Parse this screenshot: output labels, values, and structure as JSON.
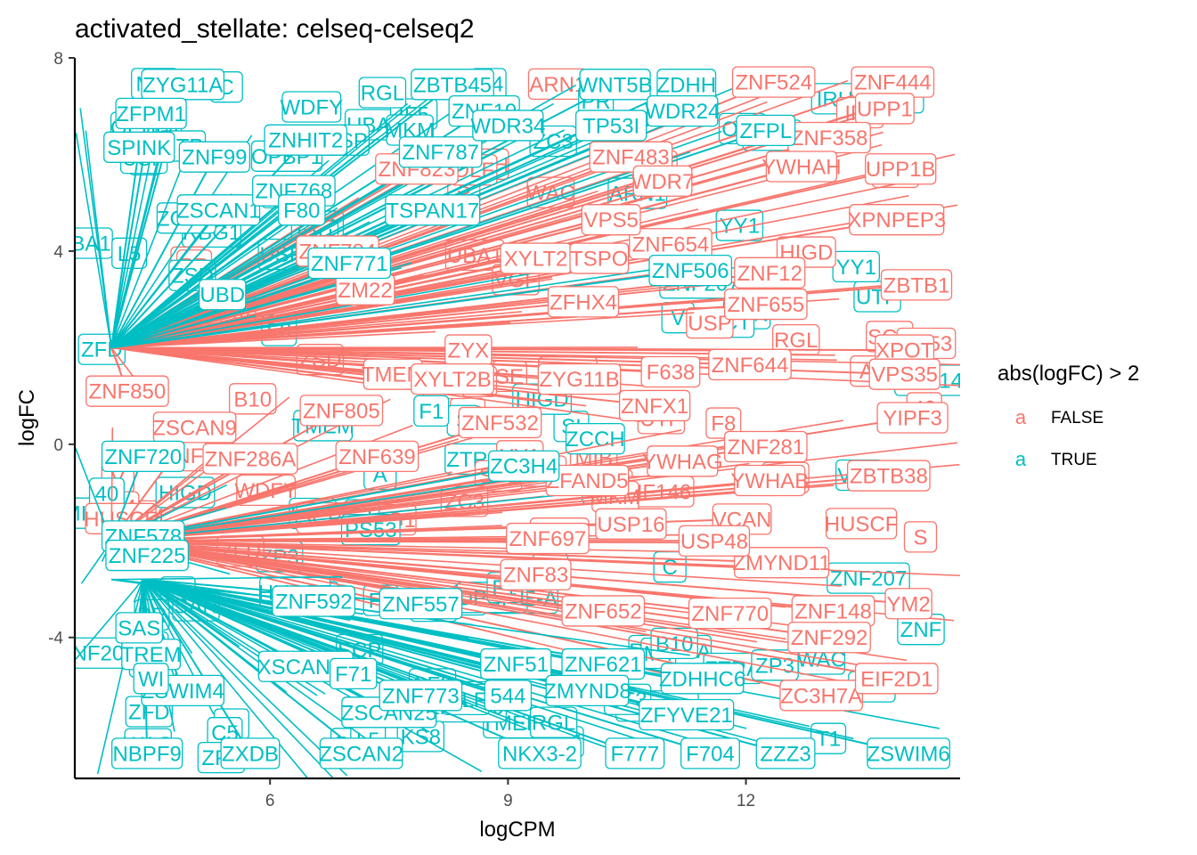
{
  "chart_data": {
    "type": "scatter",
    "title": "activated_stellate: celseq-celseq2",
    "xlabel": "logCPM",
    "ylabel": "logFC",
    "xlim": [
      3.55,
      14.7
    ],
    "ylim": [
      -6.9,
      8
    ],
    "x_ticks": [
      6,
      9,
      12
    ],
    "y_ticks": [
      8,
      4,
      0,
      -4
    ],
    "grid": false,
    "legend": {
      "title": "abs(logFC) > 2",
      "placement": "right",
      "key_glyph": "a",
      "entries": [
        {
          "label": "FALSE",
          "color": "#F8766D"
        },
        {
          "label": "TRUE",
          "color": "#00BFC4"
        }
      ]
    },
    "series": [
      {
        "name": "FALSE",
        "color": "#F8766D",
        "points": [
          {
            "label": "ZNF524",
            "x": 12.35,
            "y": 7.5,
            "px": 4.0,
            "py": 2.0
          },
          {
            "label": "ZNF444",
            "x": 13.85,
            "y": 7.5,
            "px": 4.0,
            "py": 2.0
          },
          {
            "label": "UPP1",
            "x": 13.75,
            "y": 6.95,
            "px": 4.0,
            "py": 2.0
          },
          {
            "label": "ZNF358",
            "x": 13.05,
            "y": 6.35,
            "px": 4.0,
            "py": 2.0
          },
          {
            "label": "ZNF483",
            "x": 10.55,
            "y": 5.95,
            "px": 4.0,
            "py": 2.0
          },
          {
            "label": "YWHAH",
            "x": 12.7,
            "y": 5.75,
            "px": 4.0,
            "py": 2.0
          },
          {
            "label": "ZNF823",
            "x": 7.85,
            "y": 5.7,
            "px": 4.0,
            "py": 2.0
          },
          {
            "label": "XPNPEP3",
            "x": 13.9,
            "y": 4.65,
            "px": 4.0,
            "py": 2.0
          },
          {
            "label": "ZNF654",
            "x": 11.05,
            "y": 4.15,
            "px": 4.0,
            "py": 2.0
          },
          {
            "label": "ZNF784",
            "x": 6.85,
            "y": 4.0,
            "px": 4.0,
            "py": 2.0
          },
          {
            "label": "XYLT2",
            "x": 9.35,
            "y": 3.85,
            "px": 4.0,
            "py": 2.0
          },
          {
            "label": "ZNF12",
            "x": 12.3,
            "y": 3.55,
            "px": 4.0,
            "py": 2.0
          },
          {
            "label": "ZBTB1",
            "x": 14.15,
            "y": 3.3,
            "px": 4.0,
            "py": 2.0
          },
          {
            "label": "ZNF655",
            "x": 12.25,
            "y": 2.9,
            "px": 4.0,
            "py": 2.0
          },
          {
            "label": "ZFHX4",
            "x": 9.95,
            "y": 2.95,
            "px": 4.0,
            "py": 2.0
          },
          {
            "label": "XPOT",
            "x": 14.0,
            "y": 1.95,
            "px": 4.0,
            "py": 2.0
          },
          {
            "label": "ZYX",
            "x": 8.5,
            "y": 1.95,
            "px": 4.0,
            "py": 2.0
          },
          {
            "label": "ZNF644",
            "x": 12.05,
            "y": 1.65,
            "px": 4.0,
            "py": 2.0
          },
          {
            "label": "ZYG11B",
            "x": 9.9,
            "y": 1.35,
            "px": 4.0,
            "py": 2.0
          },
          {
            "label": "ZNF850",
            "x": 4.2,
            "y": 1.1,
            "px": 4.0,
            "py": 2.0
          },
          {
            "label": "ZNFX1",
            "x": 10.85,
            "y": 0.8,
            "px": 4.0,
            "py": 2.0
          },
          {
            "label": "ZNF805",
            "x": 6.9,
            "y": 0.7,
            "px": 4.0,
            "py": -2.0
          },
          {
            "label": "YIPF3",
            "x": 14.1,
            "y": 0.55,
            "px": 4.0,
            "py": -2.0
          },
          {
            "label": "ZNF532",
            "x": 8.9,
            "y": 0.45,
            "px": 4.0,
            "py": -2.0
          },
          {
            "label": "ZSCAN9",
            "x": 5.05,
            "y": 0.35,
            "px": 4.0,
            "py": -2.0
          },
          {
            "label": "ZNF281",
            "x": 12.25,
            "y": -0.05,
            "px": 4.0,
            "py": -2.0
          },
          {
            "label": "ZNF286A",
            "x": 5.75,
            "y": -0.3,
            "px": 4.0,
            "py": -2.0
          },
          {
            "label": "ZNF639",
            "x": 7.35,
            "y": -0.25,
            "px": 4.0,
            "py": -2.0
          },
          {
            "label": "ZBTB38",
            "x": 13.8,
            "y": -0.65,
            "px": 4.0,
            "py": -2.0
          },
          {
            "label": "YWHAB",
            "x": 12.3,
            "y": -0.75,
            "px": 4.0,
            "py": -2.0
          },
          {
            "label": "ZFAND5",
            "x": 10.0,
            "y": -0.75,
            "px": 4.0,
            "py": -2.0
          },
          {
            "label": "YWHAG",
            "x": 11.2,
            "y": -0.35,
            "px": 4.0,
            "py": -2.0
          },
          {
            "label": "VCAN",
            "x": 11.95,
            "y": -1.55,
            "px": 4.0,
            "py": -2.0
          },
          {
            "label": "USP16",
            "x": 10.55,
            "y": -1.65,
            "px": 4.0,
            "py": -2.0
          },
          {
            "label": "ZNF697",
            "x": 9.5,
            "y": -1.95,
            "px": 4.0,
            "py": -2.0
          },
          {
            "label": "ZMYND11",
            "x": 12.45,
            "y": -2.45,
            "px": 4.0,
            "py": -2.0
          },
          {
            "label": "ZNF83",
            "x": 9.35,
            "y": -2.7,
            "px": 4.0,
            "py": -2.0
          },
          {
            "label": "ZNF770",
            "x": 11.8,
            "y": -3.5,
            "px": 4.0,
            "py": -2.0
          },
          {
            "label": "ZNF652",
            "x": 10.2,
            "y": -3.45,
            "px": 4.0,
            "py": -2.0
          },
          {
            "label": "ZNF148",
            "x": 13.1,
            "y": -3.45,
            "px": 4.0,
            "py": -2.0
          },
          {
            "label": "ZNF292",
            "x": 13.05,
            "y": -4.0,
            "px": 4.0,
            "py": -2.0
          },
          {
            "label": "ZC3H7A",
            "x": 12.95,
            "y": -5.2,
            "px": 4.0,
            "py": -2.0
          },
          {
            "label": "VPS35",
            "x": 14.0,
            "y": 1.45,
            "px": 4.0,
            "py": 2.0
          },
          {
            "label": "WDR7",
            "x": 10.95,
            "y": 5.45,
            "px": 4.0,
            "py": 2.0
          },
          {
            "label": "VPS5",
            "x": 10.3,
            "y": 4.65,
            "px": 4.0,
            "py": 2.0
          },
          {
            "label": "TSPO",
            "x": 10.15,
            "y": 3.85,
            "px": 4.0,
            "py": 2.0
          },
          {
            "label": "TMEM",
            "x": 7.55,
            "y": 1.45,
            "px": 4.0,
            "py": 2.0
          },
          {
            "label": "F638",
            "x": 11.05,
            "y": 1.5,
            "px": 4.0,
            "py": 2.0
          },
          {
            "label": "USP48",
            "x": 11.6,
            "y": -2.0,
            "px": 4.0,
            "py": -2.0
          },
          {
            "label": "YM2",
            "x": 14.05,
            "y": -3.3,
            "px": 4.0,
            "py": -2.0
          },
          {
            "label": "EIF2D1",
            "x": 13.9,
            "y": -4.85,
            "px": 4.0,
            "py": -2.0
          },
          {
            "label": "UPP1B",
            "x": 13.95,
            "y": 5.7,
            "px": 4.0,
            "py": 2.0
          },
          {
            "label": "ZM22",
            "x": 7.2,
            "y": 3.2,
            "px": 4.0,
            "py": 2.0
          },
          {
            "label": "XYLT2B",
            "x": 8.3,
            "y": 1.35,
            "px": 4.0,
            "py": 2.0
          }
        ]
      },
      {
        "name": "TRUE",
        "color": "#00BFC4",
        "points": [
          {
            "label": "ZYG11A",
            "x": 4.9,
            "y": 7.45,
            "px": 4.0,
            "py": 2.0
          },
          {
            "label": "ZBTB45",
            "x": 8.3,
            "y": 7.45,
            "px": 4.0,
            "py": 2.0
          },
          {
            "label": "WNT5B",
            "x": 10.35,
            "y": 7.45,
            "px": 4.0,
            "py": 2.0
          },
          {
            "label": "ZDHH",
            "x": 11.25,
            "y": 7.45,
            "px": 4.0,
            "py": 2.0
          },
          {
            "label": "ZFPM1",
            "x": 4.5,
            "y": 6.85,
            "px": 4.0,
            "py": 2.0
          },
          {
            "label": "ZNF19",
            "x": 8.7,
            "y": 6.9,
            "px": 4.0,
            "py": 2.0
          },
          {
            "label": "WDR24",
            "x": 11.2,
            "y": 6.9,
            "px": 4.0,
            "py": 2.0
          },
          {
            "label": "ZNHIT2",
            "x": 6.45,
            "y": 6.3,
            "px": 4.0,
            "py": 2.0
          },
          {
            "label": "ZFPL",
            "x": 12.25,
            "y": 6.5,
            "px": 4.0,
            "py": 2.0
          },
          {
            "label": "SPINK",
            "x": 4.35,
            "y": 6.15,
            "px": 4.0,
            "py": 2.0
          },
          {
            "label": "ZNF99",
            "x": 5.3,
            "y": 5.95,
            "px": 4.0,
            "py": 2.0
          },
          {
            "label": "ZSCAN1",
            "x": 5.35,
            "y": 4.85,
            "px": 4.0,
            "py": 2.0
          },
          {
            "label": "ZNF506",
            "x": 11.3,
            "y": 3.6,
            "px": 4.0,
            "py": 2.0
          },
          {
            "label": "ZNF720",
            "x": 4.4,
            "y": -0.25,
            "px": 4.0,
            "py": -2.0
          },
          {
            "label": "ZNF578",
            "x": 4.4,
            "y": -1.9,
            "px": 4.0,
            "py": -2.0
          },
          {
            "label": "ZNF592",
            "x": 6.55,
            "y": -3.25,
            "px": 4.0,
            "py": -2.8
          },
          {
            "label": "ZNF557",
            "x": 7.9,
            "y": -3.3,
            "px": 4.4,
            "py": -2.8
          },
          {
            "label": "XSCAN12",
            "x": 6.45,
            "y": -4.6,
            "px": 4.4,
            "py": -2.8
          },
          {
            "label": "ZSWIM4",
            "x": 4.9,
            "y": -5.1,
            "px": 4.4,
            "py": -2.8
          },
          {
            "label": "ZSCAN25",
            "x": 7.5,
            "y": -5.55,
            "px": 4.4,
            "py": -2.8
          },
          {
            "label": "ZNF621",
            "x": 10.2,
            "y": -4.55,
            "px": 4.4,
            "py": -2.8
          },
          {
            "label": "ZDHHC6",
            "x": 11.45,
            "y": -4.85,
            "px": 4.4,
            "py": -2.8
          },
          {
            "label": "ZNF773",
            "x": 7.9,
            "y": -5.2,
            "px": 4.4,
            "py": -2.8
          },
          {
            "label": "F71",
            "x": 7.05,
            "y": -4.75,
            "px": 4.4,
            "py": -2.8
          },
          {
            "label": "544",
            "x": 9.0,
            "y": -5.2,
            "px": 4.4,
            "py": -2.8
          },
          {
            "label": "ZNF51",
            "x": 9.1,
            "y": -4.55,
            "px": 4.4,
            "py": -2.8
          },
          {
            "label": "NBPF9",
            "x": 4.45,
            "y": -6.4,
            "px": 4.4,
            "py": -2.8
          },
          {
            "label": "ZXDB",
            "x": 5.75,
            "y": -6.4,
            "px": 4.4,
            "py": -2.8
          },
          {
            "label": "ZSCAN2",
            "x": 7.15,
            "y": -6.4,
            "px": 4.4,
            "py": -2.8
          },
          {
            "label": "NKX3-2",
            "x": 9.4,
            "y": -6.4,
            "px": 4.4,
            "py": -2.8
          },
          {
            "label": "F777",
            "x": 10.6,
            "y": -6.4,
            "px": 4.4,
            "py": -2.8
          },
          {
            "label": "F704",
            "x": 11.55,
            "y": -6.4,
            "px": 4.4,
            "py": -2.8
          },
          {
            "label": "ZZZ3",
            "x": 12.5,
            "y": -6.4,
            "px": 4.4,
            "py": -2.8
          },
          {
            "label": "ZSWIM6",
            "x": 14.05,
            "y": -6.4,
            "px": 4.4,
            "py": -2.8
          },
          {
            "label": "TP53I",
            "x": 10.3,
            "y": 6.6,
            "px": 4.0,
            "py": 2.0
          },
          {
            "label": "ZNF787",
            "x": 8.15,
            "y": 6.05,
            "px": 4.0,
            "py": 2.0
          },
          {
            "label": "TSPAN17",
            "x": 8.05,
            "y": 4.85,
            "px": 4.0,
            "py": 2.0
          },
          {
            "label": "UBD",
            "x": 5.4,
            "y": 3.1,
            "px": 4.0,
            "py": 2.0
          },
          {
            "label": "ZNF771",
            "x": 7.0,
            "y": 3.75,
            "px": 4.0,
            "py": 2.0
          },
          {
            "label": "ZNF768",
            "x": 6.3,
            "y": 5.25,
            "px": 4.0,
            "py": 2.0
          },
          {
            "label": "F80",
            "x": 6.4,
            "y": 4.85,
            "px": 4.0,
            "py": 2.0
          },
          {
            "label": "WDR34",
            "x": 9.0,
            "y": 6.6,
            "px": 4.0,
            "py": 2.0
          },
          {
            "label": "TREM",
            "x": 4.5,
            "y": -4.35,
            "px": 4.4,
            "py": -2.8
          },
          {
            "label": "SAS",
            "x": 4.35,
            "y": -3.8,
            "px": 4.4,
            "py": -2.8
          },
          {
            "label": "WI",
            "x": 4.5,
            "y": -4.85,
            "px": 4.4,
            "py": -2.8
          },
          {
            "label": "ZNF225",
            "x": 4.45,
            "y": -2.3,
            "px": 4.0,
            "py": -2.0
          },
          {
            "label": "ZC3H4",
            "x": 9.2,
            "y": -0.45,
            "px": 4.0,
            "py": -2.0
          },
          {
            "label": "ZMYND8",
            "x": 10.0,
            "y": -5.1,
            "px": 4.4,
            "py": -2.8
          },
          {
            "label": "ZFYVE21",
            "x": 11.25,
            "y": -5.6,
            "px": 4.4,
            "py": -2.8
          }
        ]
      }
    ],
    "annotations": [
      "SE",
      "M",
      "RHDE-A",
      "SI",
      "ZNF",
      "C",
      "RBG1",
      "OPBP1",
      "SAN",
      "V",
      "S",
      "ZTRA",
      "IRH",
      "CT",
      "WDFY",
      "MIB",
      "ZCCH",
      "ZNF207",
      "C5",
      "WAC",
      "TMEM",
      "ZP3",
      "SF3",
      "UBA1",
      "USP",
      "ZFD",
      "ZC3",
      "UTP",
      "VGF",
      "ARN1",
      "ZNF146",
      "YY1",
      "M4",
      "B10",
      "40",
      "USP",
      "A",
      "F1",
      "L5",
      "KS8",
      "T1",
      "F8",
      "IF5",
      "PR",
      "SCP",
      "ZSD",
      "PS53",
      "HIGD",
      "MKM",
      "OLF",
      "HUSCF",
      "RGL"
    ]
  }
}
